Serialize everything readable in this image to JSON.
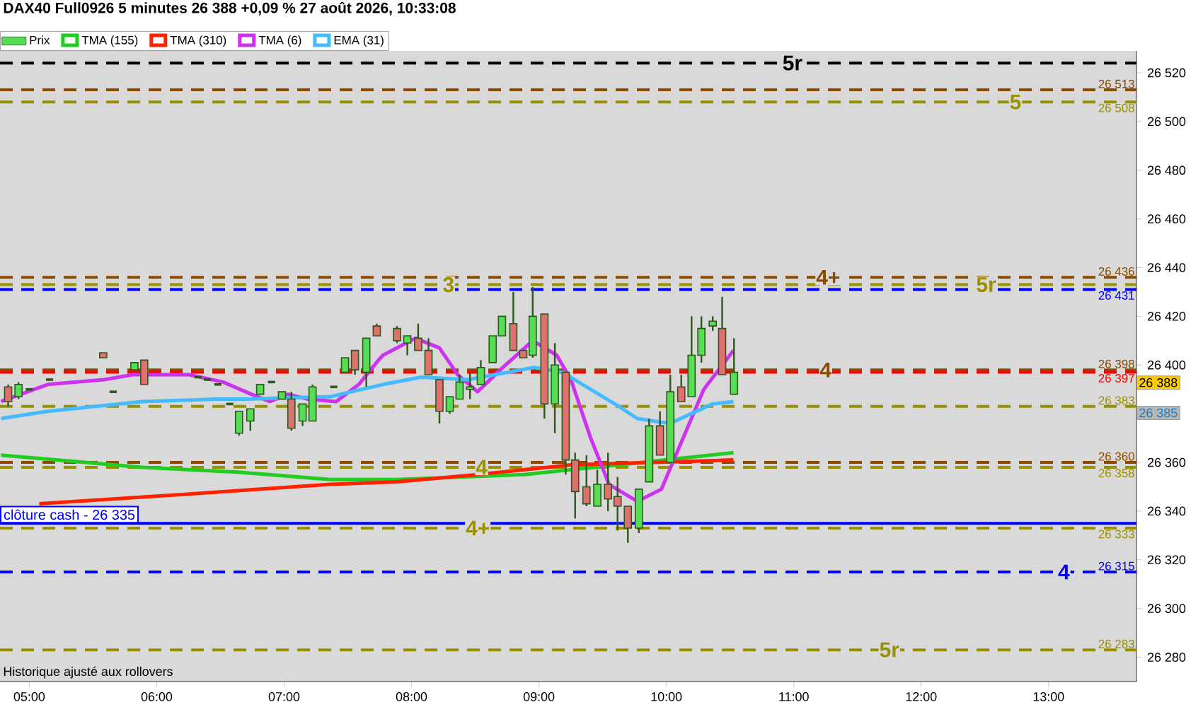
{
  "chart_data": {
    "type": "candlestick",
    "title": "DAX40 Full0926 5 minutes 26 388 +0,09 % 27 août 2026, 10:33:08",
    "xlim": [
      4.77,
      13.69
    ],
    "ylim": [
      26270,
      26529
    ],
    "xticks": [
      {
        "value": 5,
        "label": "05:00"
      },
      {
        "value": 6,
        "label": "06:00"
      },
      {
        "value": 7,
        "label": "07:00"
      },
      {
        "value": 8,
        "label": "08:00"
      },
      {
        "value": 9,
        "label": "09:00"
      },
      {
        "value": 10,
        "label": "10:00"
      },
      {
        "value": 11,
        "label": "11:00"
      },
      {
        "value": 12,
        "label": "12:00"
      },
      {
        "value": 13,
        "label": "13:00"
      }
    ],
    "yticks": [
      {
        "value": 26280,
        "label": "26 280"
      },
      {
        "value": 26300,
        "label": "26 300"
      },
      {
        "value": 26320,
        "label": "26 320"
      },
      {
        "value": 26340,
        "label": "26 340"
      },
      {
        "value": 26360,
        "label": "26 360"
      },
      {
        "value": 26380,
        "label": null
      },
      {
        "value": 26400,
        "label": "26 400"
      },
      {
        "value": 26420,
        "label": "26 420"
      },
      {
        "value": 26440,
        "label": "26 440"
      },
      {
        "value": 26460,
        "label": "26 460"
      },
      {
        "value": 26480,
        "label": "26 480"
      },
      {
        "value": 26500,
        "label": "26 500"
      },
      {
        "value": 26520,
        "label": "26 520"
      }
    ],
    "legend": "top left",
    "series": [
      {
        "name": "Prix",
        "colors": [
          "#e07070",
          "#55dd55",
          "#2d5a1a",
          "#2d5a1a",
          "#e07070",
          "#2d5a1a",
          "#55dd55",
          "#e07070",
          "#2d5a1a",
          "#2d5a1a",
          "#2d5a1a",
          "#2d5a1a",
          "#55dd55",
          "#55dd55",
          "#55dd55",
          "#2d5a1a",
          "#55dd55",
          "#e07070",
          "#55dd55",
          "#55dd55",
          "#2d5a1a",
          "#55dd55",
          "#e07070",
          "#55dd55",
          "#e07070",
          "#e07070",
          "#55dd55",
          "#e07070",
          "#e07070",
          "#e07070",
          "#55dd55",
          "#55dd55",
          "#55dd55",
          "#55dd55",
          "#55dd55",
          "#55dd55",
          "#e07070",
          "#e07070",
          "#55dd55",
          "#e07070",
          "#55dd55",
          "#e07070",
          "#e07070",
          "#e07070",
          "#55dd55",
          "#e07070",
          "#e07070",
          "#e07070",
          "#55dd55",
          "#55dd55",
          "#e07070",
          "#55dd55",
          "#e07070",
          "#55dd55",
          "#55dd55",
          "#55dd55",
          "#e07070",
          "#55dd55"
        ],
        "x": [
          4.834,
          4.915,
          5.0,
          5.159,
          5.58,
          5.658,
          5.825,
          5.902,
          6.324,
          6.398,
          6.48,
          6.573,
          6.646,
          6.735,
          6.812,
          6.901,
          6.983,
          7.057,
          7.145,
          7.223,
          7.39,
          7.478,
          7.556,
          7.645,
          7.727,
          7.886,
          7.967,
          8.052,
          8.133,
          8.219,
          8.3,
          8.377,
          8.459,
          8.544,
          8.637,
          8.71,
          8.799,
          8.877,
          8.951,
          9.043,
          9.125,
          9.21,
          9.284,
          9.373,
          9.458,
          9.542,
          9.617,
          9.698,
          9.784,
          9.865,
          9.95,
          10.031,
          10.117,
          10.198,
          10.275,
          10.364,
          10.438,
          10.531
        ],
        "ohlc": [
          [
            26391,
            26392,
            26383,
            26385
          ],
          [
            26387,
            26393,
            26386,
            26392
          ],
          [
            26390,
            26390,
            26390,
            26390
          ],
          [
            26394,
            26394,
            26394,
            26394
          ],
          [
            26405,
            26405,
            26403,
            26403
          ],
          [
            26389,
            26389,
            26389,
            26389
          ],
          [
            26398,
            26401,
            26398,
            26401
          ],
          [
            26402,
            26402,
            26392,
            26392
          ],
          [
            26395,
            26395,
            26395,
            26395
          ],
          [
            26394,
            26394,
            26394,
            26394
          ],
          [
            26392,
            26392,
            26392,
            26392
          ],
          [
            26384,
            26384,
            26384,
            26384
          ],
          [
            26372,
            26381,
            26371,
            26381
          ],
          [
            26377,
            26382,
            26373,
            26382
          ],
          [
            26388,
            26392,
            26388,
            26392
          ],
          [
            26393,
            26393,
            26393,
            26393
          ],
          [
            26386,
            26389,
            26386,
            26389
          ],
          [
            26386,
            26389,
            26373,
            26374
          ],
          [
            26377,
            26384,
            26375,
            26384
          ],
          [
            26377,
            26392,
            26377,
            26391
          ],
          [
            26391,
            26391,
            26391,
            26391
          ],
          [
            26397,
            26403,
            26397,
            26403
          ],
          [
            26406,
            26406,
            26396,
            26398
          ],
          [
            26397,
            26411,
            26391,
            26411
          ],
          [
            26416,
            26417,
            26412,
            26412
          ],
          [
            26415,
            26416,
            26409,
            26410
          ],
          [
            26409,
            26412,
            26404,
            26412
          ],
          [
            26411,
            26417,
            26406,
            26406
          ],
          [
            26406,
            26411,
            26396,
            26396
          ],
          [
            26394,
            26394,
            26376,
            26381
          ],
          [
            26381,
            26387,
            26380,
            26387
          ],
          [
            26386,
            26396,
            26386,
            26393
          ],
          [
            26390,
            26397,
            26386,
            26391
          ],
          [
            26392,
            26402,
            26392,
            26399
          ],
          [
            26401,
            26412,
            26401,
            26412
          ],
          [
            26412,
            26420,
            26412,
            26420
          ],
          [
            26417,
            26430,
            26406,
            26406
          ],
          [
            26406,
            26406,
            26403,
            26403
          ],
          [
            26404,
            26432,
            26403,
            26420
          ],
          [
            26421,
            26421,
            26378,
            26384
          ],
          [
            26384,
            26409,
            26372,
            26400
          ],
          [
            26397,
            26397,
            26355,
            26361
          ],
          [
            26361,
            26364,
            26337,
            26348
          ],
          [
            26350,
            26363,
            26342,
            26343
          ],
          [
            26342,
            26357,
            26342,
            26351
          ],
          [
            26351,
            26364,
            26340,
            26345
          ],
          [
            26346,
            26354,
            26332,
            26342
          ],
          [
            26342,
            26342,
            26327,
            26333
          ],
          [
            26333,
            26349,
            26331,
            26349
          ],
          [
            26352,
            26378,
            26352,
            26375
          ],
          [
            26375,
            26381,
            26363,
            26363
          ],
          [
            26360,
            26396,
            26360,
            26389
          ],
          [
            26391,
            26396,
            26385,
            26385
          ],
          [
            26387,
            26420,
            26387,
            26404
          ],
          [
            26404,
            26420,
            26401,
            26415
          ],
          [
            26416,
            26420,
            26414,
            26418
          ],
          [
            26415,
            26428,
            26396,
            26396
          ],
          [
            26388,
            26411,
            26388,
            26397
          ]
        ]
      },
      {
        "name": "TMA (155)",
        "type": "line",
        "color": "#22cc22",
        "x": [
          4.778,
          5.888,
          6.632,
          7.364,
          7.886,
          8.885,
          9.628,
          10.527
        ],
        "values": [
          26363,
          26358,
          26356,
          26353,
          26353,
          26355,
          26359,
          26364
        ]
      },
      {
        "name": "TMA (310)",
        "type": "line",
        "color": "#ff2200",
        "x": [
          5.078,
          6.254,
          7.364,
          7.886,
          8.518,
          9.251,
          10.527
        ],
        "values": [
          26343,
          26347,
          26351,
          26352,
          26355,
          26359,
          26361
        ]
      },
      {
        "name": "TMA (6)",
        "type": "line",
        "color": "#cc33ee",
        "x": [
          4.778,
          5.144,
          5.588,
          5.81,
          6.254,
          6.521,
          6.743,
          6.887,
          7.031,
          7.186,
          7.408,
          7.586,
          7.741,
          7.775,
          8.03,
          8.219,
          8.363,
          8.518,
          8.696,
          8.951,
          9.14,
          9.251,
          9.406,
          9.55,
          9.772,
          9.961,
          10.083,
          10.294,
          10.527
        ],
        "values": [
          26385,
          26392,
          26394,
          26396,
          26396,
          26393,
          26388,
          26385,
          26388,
          26386,
          26385,
          26392,
          26402,
          26404,
          26411,
          26407,
          26396,
          26389,
          26398,
          26410,
          26404,
          26394,
          26370,
          26351,
          26344,
          26349,
          26364,
          26390,
          26406
        ]
      },
      {
        "name": "EMA (31)",
        "type": "line",
        "color": "#44bbff",
        "x": [
          4.778,
          5.144,
          5.888,
          6.476,
          6.698,
          7.364,
          7.775,
          8.074,
          8.441,
          8.962,
          9.184,
          9.628,
          9.772,
          10.028,
          10.361,
          10.527
        ],
        "values": [
          26378,
          26381,
          26385,
          26386,
          26386,
          26387,
          26392,
          26395,
          26394,
          26399,
          26397,
          26383,
          26378,
          26376,
          26384,
          26385
        ]
      }
    ],
    "ref_lines": [
      {
        "axis": "y",
        "value": 26524,
        "color": "#000000",
        "line_style": "dashed"
      },
      {
        "axis": "y",
        "value": 26513,
        "color": "#8b4a00",
        "line_style": "dashed",
        "label": "26 513"
      },
      {
        "axis": "y",
        "value": 26508,
        "color": "#999000",
        "line_style": "dashed",
        "label": "26 508"
      },
      {
        "axis": "y",
        "value": 26436,
        "color": "#8b4a00",
        "line_style": "dashed",
        "label": "26 436"
      },
      {
        "axis": "y",
        "value": 26433,
        "color": "#999000",
        "line_style": "dashed"
      },
      {
        "axis": "y",
        "value": 26431,
        "color": "#0000ff",
        "line_style": "dashed",
        "label": "26 431"
      },
      {
        "axis": "y",
        "value": 26398,
        "color": "#8b4a00",
        "line_style": "dashed",
        "label": "26 398"
      },
      {
        "axis": "y",
        "value": 26397,
        "color": "#ff0000",
        "line_style": "dashed",
        "label": "26 397"
      },
      {
        "axis": "y",
        "value": 26383,
        "color": "#999000",
        "line_style": "dashed",
        "label": "26 383"
      },
      {
        "axis": "y",
        "value": 26360,
        "color": "#8b4a00",
        "line_style": "dashed",
        "label": "26 360"
      },
      {
        "axis": "y",
        "value": 26358,
        "color": "#999000",
        "line_style": "dashed",
        "label": "26 358"
      },
      {
        "axis": "y",
        "value": 26335,
        "color": "#0000ff",
        "line_style": "solid",
        "label": "clôture cash -  26 335"
      },
      {
        "axis": "y",
        "value": 26333,
        "color": "#999000",
        "line_style": "dashed",
        "label": "26 333"
      },
      {
        "axis": "y",
        "value": 26315,
        "color": "#0000ff",
        "line_style": "dashed",
        "label": "26 315"
      },
      {
        "axis": "y",
        "value": 26283,
        "color": "#999000",
        "line_style": "dashed",
        "label": "26 283"
      }
    ],
    "annotations": [
      {
        "text": "5r",
        "x": 10.99,
        "y": 26524
      },
      {
        "text": "5",
        "x": 12.74,
        "y": 26508
      },
      {
        "text": "4+",
        "x": 11.27,
        "y": 26436
      },
      {
        "text": "3",
        "x": 8.29,
        "y": 26433
      },
      {
        "text": "5r",
        "x": 12.51,
        "y": 26433
      },
      {
        "text": "4",
        "x": 11.25,
        "y": 26398
      },
      {
        "text": "4",
        "x": 8.55,
        "y": 26358
      },
      {
        "text": "4+",
        "x": 8.52,
        "y": 26333
      },
      {
        "text": "4",
        "x": 13.12,
        "y": 26315
      },
      {
        "text": "5r",
        "x": 11.75,
        "y": 26283
      },
      "26 388",
      "26 385",
      "Historique ajusté aux rollovers"
    ]
  }
}
